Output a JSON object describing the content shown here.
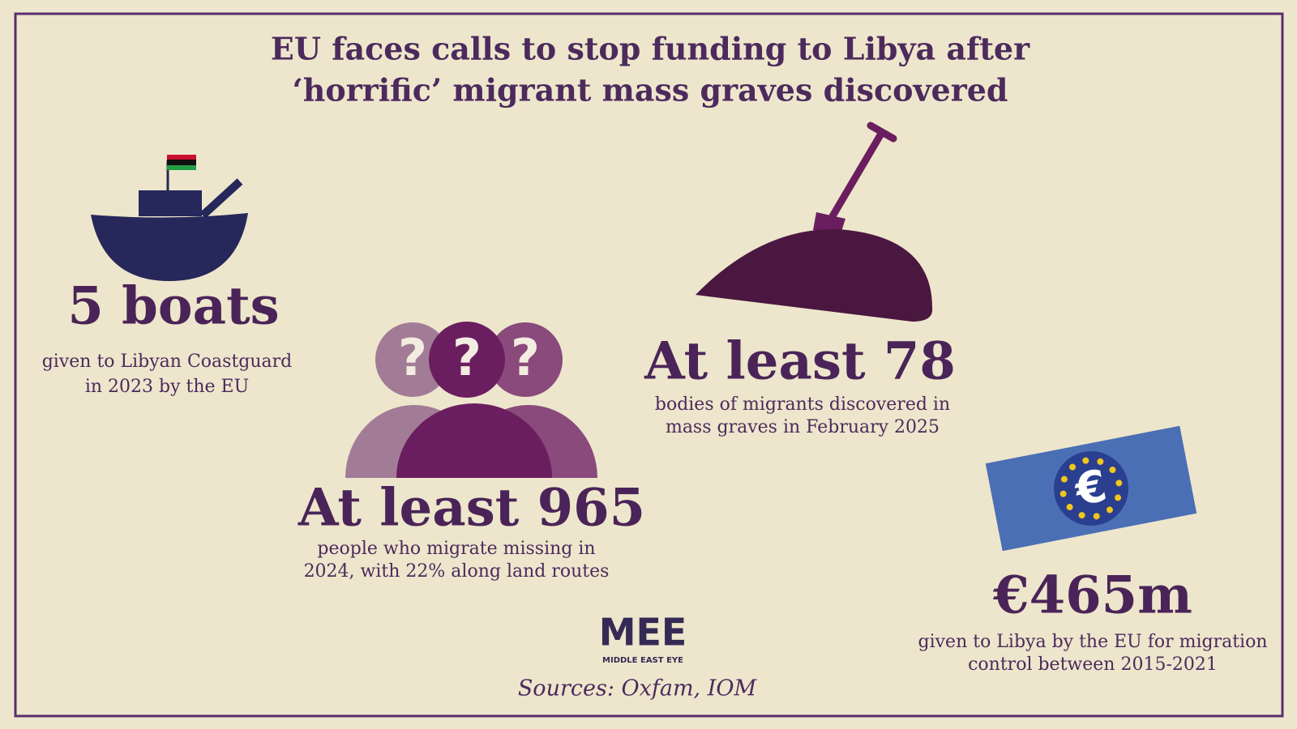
{
  "title": [
    "EU faces calls to stop funding to Libya after",
    "‘horrific’ migrant mass graves discovered"
  ],
  "stats": [
    {
      "headline": "5 boats",
      "caption": [
        "given to Libyan Coastguard",
        "in 2023 by the EU"
      ]
    },
    {
      "headline": "At least 965",
      "caption": [
        "people who migrate missing in",
        "2024, with 22% along land routes"
      ]
    },
    {
      "headline": "At least 78",
      "caption": [
        "bodies of migrants discovered in",
        "mass graves in February 2025"
      ]
    },
    {
      "headline": "€465m",
      "caption": [
        "given to Libya by the EU for migration",
        "control between 2015-2021"
      ]
    }
  ],
  "people_icon": {
    "symbol": "?"
  },
  "euro_icon": {
    "symbol": "€"
  },
  "logo": {
    "mark": "MEE",
    "name": "MIDDLE EAST EYE"
  },
  "sources": "Sources: Oxfam, IOM"
}
